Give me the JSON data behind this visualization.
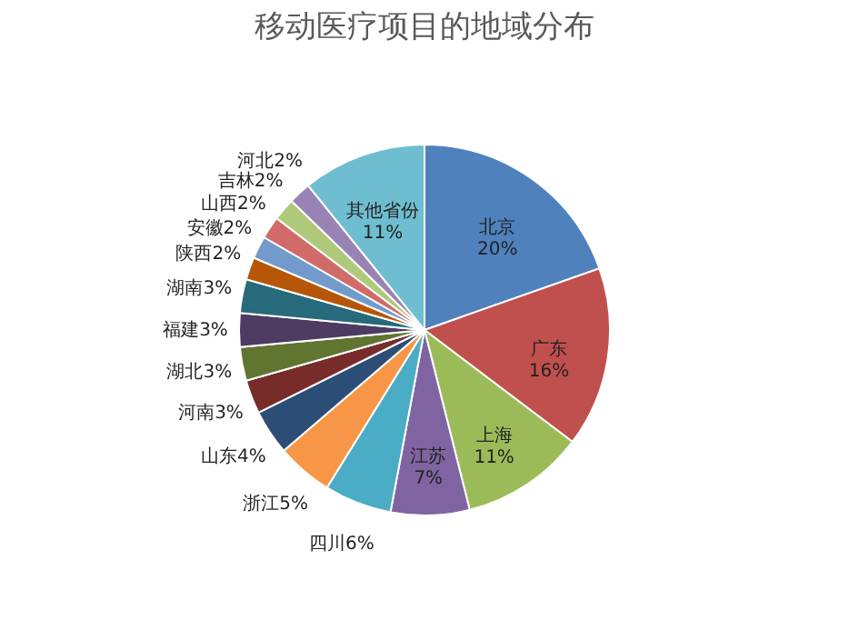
{
  "chart_data": {
    "type": "pie",
    "title": "移动医疗项目的地域分布",
    "categories": [
      "北京",
      "广东",
      "上海",
      "江苏",
      "四川",
      "浙江",
      "山东",
      "河南",
      "湖北",
      "福建",
      "湖南",
      "陕西",
      "安徽",
      "山西",
      "吉林",
      "河北",
      "其他省份"
    ],
    "values": [
      20,
      16,
      11,
      7,
      6,
      5,
      4,
      3,
      3,
      3,
      3,
      2,
      2,
      2,
      2,
      2,
      11
    ],
    "value_labels": [
      "20%",
      "16%",
      "11%",
      "7%",
      "6%",
      "5%",
      "4%",
      "3%",
      "3%",
      "3%",
      "3%",
      "2%",
      "2%",
      "2%",
      "2%",
      "2%",
      "11%"
    ],
    "colors": [
      "#4f81bd",
      "#c0504d",
      "#9bbb59",
      "#8064a2",
      "#4bacc6",
      "#f79646",
      "#2c4d75",
      "#772c2a",
      "#5f7530",
      "#4d3b62",
      "#276a7c",
      "#b65708",
      "#729aca",
      "#d16b69",
      "#afc97a",
      "#9983b5",
      "#6fbdd1"
    ],
    "legend": false
  }
}
